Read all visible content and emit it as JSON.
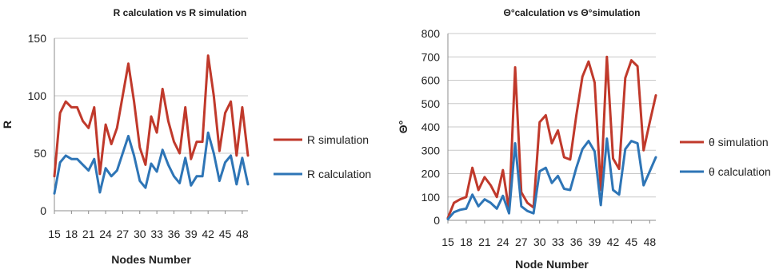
{
  "chart_data": [
    {
      "type": "line",
      "title": "R calculation vs R simulation",
      "xlabel": "Nodes Number",
      "ylabel": "R",
      "ylim": [
        0,
        150
      ],
      "yticks": [
        0,
        50,
        100,
        150
      ],
      "grid": true,
      "legend_position": "right",
      "x": [
        15,
        16,
        17,
        18,
        19,
        20,
        21,
        22,
        23,
        24,
        25,
        26,
        27,
        28,
        29,
        30,
        31,
        32,
        33,
        34,
        35,
        36,
        37,
        38,
        39,
        40,
        41,
        42,
        43,
        44,
        45,
        46,
        47,
        48,
        49
      ],
      "xtick_labels": [
        "15",
        "18",
        "21",
        "24",
        "27",
        "30",
        "33",
        "36",
        "39",
        "42",
        "45",
        "48"
      ],
      "series": [
        {
          "name": "R simulation",
          "color": "#c0392b",
          "values": [
            30,
            85,
            95,
            90,
            90,
            78,
            72,
            90,
            32,
            75,
            58,
            72,
            100,
            128,
            95,
            55,
            40,
            82,
            68,
            106,
            78,
            60,
            50,
            90,
            45,
            60,
            60,
            135,
            100,
            52,
            85,
            95,
            48,
            90,
            48
          ]
        },
        {
          "name": "R calculation",
          "color": "#2e75b6",
          "values": [
            15,
            42,
            48,
            45,
            45,
            40,
            35,
            45,
            16,
            37,
            30,
            35,
            50,
            65,
            48,
            26,
            20,
            41,
            34,
            53,
            40,
            30,
            24,
            46,
            22,
            30,
            30,
            68,
            50,
            26,
            42,
            48,
            23,
            46,
            23
          ]
        }
      ]
    },
    {
      "type": "line",
      "title": "Θ°calculation vs Θ°simulation",
      "xlabel": "Node Number",
      "ylabel": "Θ°",
      "ylim": [
        0,
        800
      ],
      "yticks": [
        0,
        100,
        200,
        300,
        400,
        500,
        600,
        700,
        800
      ],
      "grid": true,
      "legend_position": "right",
      "x": [
        15,
        16,
        17,
        18,
        19,
        20,
        21,
        22,
        23,
        24,
        25,
        26,
        27,
        28,
        29,
        30,
        31,
        32,
        33,
        34,
        35,
        36,
        37,
        38,
        39,
        40,
        41,
        42,
        43,
        44,
        45,
        46,
        47,
        48,
        49
      ],
      "xtick_labels": [
        "15",
        "18",
        "21",
        "24",
        "27",
        "30",
        "33",
        "36",
        "39",
        "42",
        "45",
        "48"
      ],
      "series": [
        {
          "name": "θ simulation",
          "color": "#c0392b",
          "values": [
            10,
            75,
            90,
            100,
            225,
            130,
            185,
            150,
            100,
            215,
            40,
            655,
            120,
            75,
            55,
            420,
            450,
            330,
            385,
            270,
            260,
            450,
            615,
            680,
            590,
            130,
            700,
            265,
            220,
            610,
            685,
            660,
            300,
            420,
            535
          ]
        },
        {
          "name": "θ calculation",
          "color": "#2e75b6",
          "values": [
            5,
            35,
            45,
            50,
            110,
            60,
            90,
            75,
            50,
            105,
            30,
            330,
            60,
            40,
            30,
            210,
            225,
            160,
            190,
            135,
            130,
            225,
            305,
            340,
            295,
            65,
            350,
            130,
            110,
            305,
            340,
            330,
            150,
            210,
            270
          ]
        }
      ]
    }
  ]
}
